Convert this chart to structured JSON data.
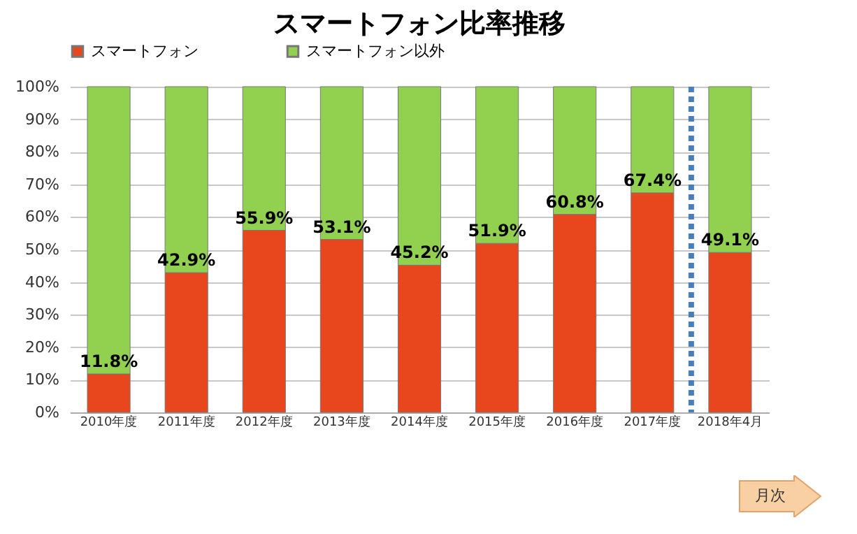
{
  "chart_data": {
    "type": "bar",
    "title": "スマートフォン比率推移",
    "stacked": true,
    "categories": [
      "2010年度",
      "2011年度",
      "2012年度",
      "2013年度",
      "2014年度",
      "2015年度",
      "2016年度",
      "2017年度",
      "2018年4月"
    ],
    "series": [
      {
        "name": "スマートフォン",
        "color": "#e8461c",
        "values": [
          11.8,
          42.9,
          55.9,
          53.1,
          45.2,
          51.9,
          60.8,
          67.4,
          49.1
        ],
        "value_labels": [
          "11.8%",
          "42.9%",
          "55.9%",
          "53.1%",
          "45.2%",
          "51.9%",
          "60.8%",
          "67.4%",
          "49.1%"
        ]
      },
      {
        "name": "スマートフォン以外",
        "color": "#92d050",
        "values": [
          88.2,
          57.1,
          44.1,
          46.9,
          54.8,
          48.1,
          39.2,
          32.6,
          50.9
        ]
      }
    ],
    "ylim": [
      0,
      100
    ],
    "yticks": [
      {
        "value": 0,
        "label": "0%"
      },
      {
        "value": 10,
        "label": "10%"
      },
      {
        "value": 20,
        "label": "20%"
      },
      {
        "value": 30,
        "label": "30%"
      },
      {
        "value": 40,
        "label": "40%"
      },
      {
        "value": 50,
        "label": "50%"
      },
      {
        "value": 60,
        "label": "60%"
      },
      {
        "value": 70,
        "label": "70%"
      },
      {
        "value": 80,
        "label": "80%"
      },
      {
        "value": 90,
        "label": "90%"
      },
      {
        "value": 100,
        "label": "100%"
      }
    ],
    "grid": "y",
    "legend": "top",
    "ref_lines": [
      {
        "axis": "x",
        "value": "2018年4月",
        "color": "#4a7ebb",
        "line_style": "dotted"
      }
    ],
    "annotations": [
      "月次"
    ]
  }
}
